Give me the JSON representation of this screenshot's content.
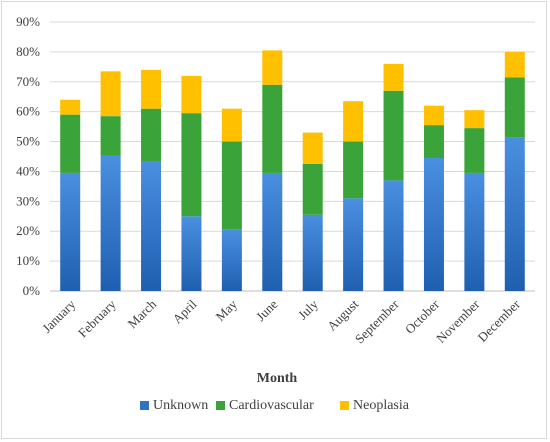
{
  "chart_data": {
    "type": "bar",
    "stacked": true,
    "title": "",
    "xlabel": "Month",
    "ylabel": "",
    "ylim": [
      0,
      90
    ],
    "yticks": [
      0,
      10,
      20,
      30,
      40,
      50,
      60,
      70,
      80,
      90
    ],
    "ytick_suffix": "%",
    "grid": true,
    "legend_position": "bottom",
    "categories": [
      "January",
      "February",
      "March",
      "April",
      "May",
      "June",
      "July",
      "August",
      "September",
      "October",
      "November",
      "December"
    ],
    "series": [
      {
        "name": "Unknown",
        "color": "#2e74c4",
        "values": [
          39.5,
          45.5,
          43.5,
          25,
          20.5,
          39.5,
          25.5,
          31,
          37,
          44.5,
          39.5,
          51.5
        ]
      },
      {
        "name": "Cardiovascular",
        "color": "#3aa33a",
        "values": [
          19.5,
          13,
          17.5,
          34.5,
          29.5,
          29.5,
          17,
          19,
          30,
          11,
          15,
          20
        ]
      },
      {
        "name": "Neoplasia",
        "color": "#ffc000",
        "values": [
          5,
          15,
          13,
          12.5,
          11,
          11.5,
          10.5,
          13.5,
          9,
          6.5,
          6,
          8.5
        ]
      }
    ]
  }
}
